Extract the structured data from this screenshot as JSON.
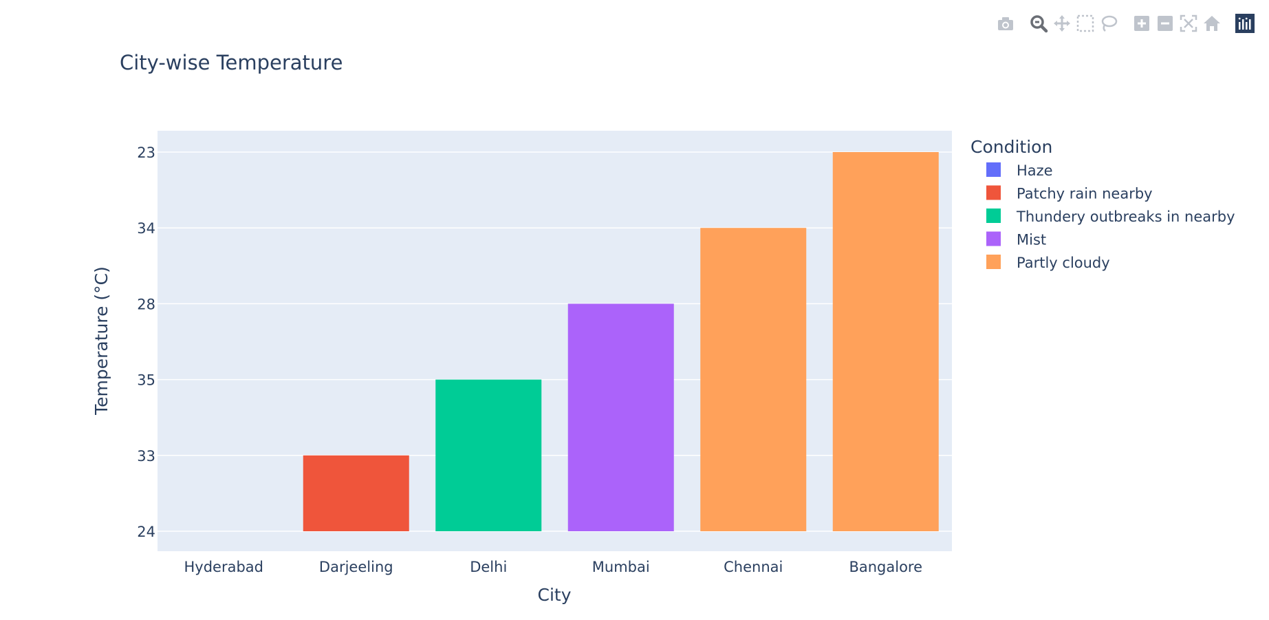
{
  "modebar": {
    "icons": [
      "camera-icon",
      "zoom-icon",
      "pan-icon",
      "box-select-icon",
      "lasso-icon",
      "zoom-in-icon",
      "zoom-out-icon",
      "autoscale-icon",
      "reset-axes-icon",
      "plotly-logo-icon"
    ]
  },
  "chart_data": {
    "type": "bar",
    "title": "City-wise Temperature",
    "xlabel": "City",
    "ylabel": "Temperature (°C)",
    "categories": [
      "Hyderabad",
      "Darjeeling",
      "Delhi",
      "Mumbai",
      "Chennai",
      "Bangalore"
    ],
    "y_categories": [
      "24",
      "33",
      "35",
      "28",
      "34",
      "23"
    ],
    "values": [
      "24",
      "33",
      "35",
      "28",
      "34",
      "23"
    ],
    "conditions": [
      "Haze",
      "Patchy rain nearby",
      "Thundery outbreaks in nearby",
      "Mist",
      "Partly cloudy",
      "Partly cloudy"
    ],
    "legend": {
      "title": "Condition",
      "placement": "right",
      "entries": [
        {
          "name": "Haze",
          "color": "#636efa"
        },
        {
          "name": "Patchy rain nearby",
          "color": "#EF553B"
        },
        {
          "name": "Thundery outbreaks in nearby",
          "color": "#00cc96"
        },
        {
          "name": "Mist",
          "color": "#ab63fa"
        },
        {
          "name": "Partly cloudy",
          "color": "#FFA15A"
        }
      ]
    },
    "grid": true
  }
}
